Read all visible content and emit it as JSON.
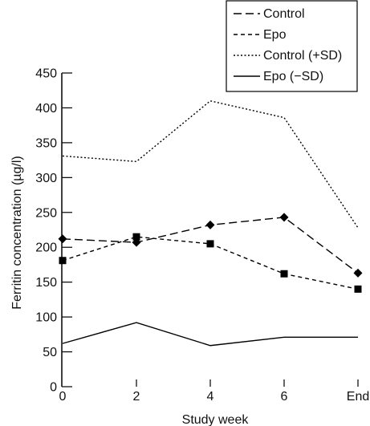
{
  "chart_data": {
    "type": "line",
    "title": "",
    "xlabel": "Study week",
    "ylabel": "Ferritin concentration (µg/l)",
    "categories": [
      "0",
      "2",
      "4",
      "6",
      "End"
    ],
    "ylim": [
      0,
      450
    ],
    "yticks": [
      0,
      50,
      100,
      150,
      200,
      250,
      300,
      350,
      400,
      450
    ],
    "grid": false,
    "legend_position": "top-right",
    "series": [
      {
        "name": "Control",
        "values": [
          212,
          207,
          232,
          243,
          163
        ],
        "line_style": "dashed",
        "marker": "diamond",
        "color": "#000000"
      },
      {
        "name": "Epo",
        "values": [
          181,
          215,
          205,
          162,
          140
        ],
        "line_style": "short-dashed",
        "marker": "square",
        "color": "#000000"
      },
      {
        "name": "Control (+SD)",
        "values": [
          331,
          323,
          410,
          386,
          228
        ],
        "line_style": "dotted",
        "marker": "none",
        "color": "#000000"
      },
      {
        "name": "Epo (−SD)",
        "values": [
          62,
          92,
          59,
          71,
          71
        ],
        "line_style": "solid",
        "marker": "none",
        "color": "#000000"
      }
    ]
  }
}
